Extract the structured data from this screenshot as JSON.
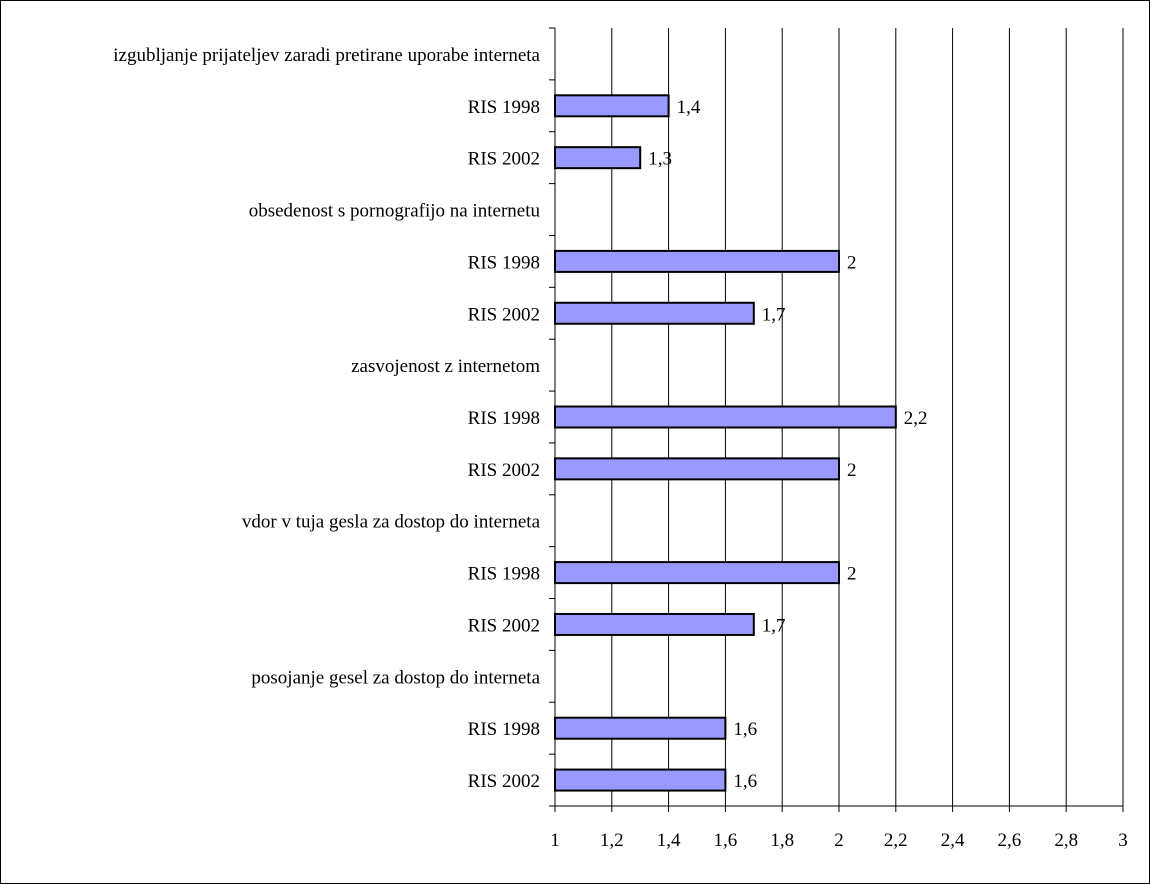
{
  "chart_data": {
    "type": "bar",
    "orientation": "horizontal",
    "rows": [
      {
        "label": "izgubljanje prijateljev zaradi pretirane uporabe interneta",
        "value": null,
        "value_label": ""
      },
      {
        "label": "RIS 1998",
        "value": 1.4,
        "value_label": "1,4"
      },
      {
        "label": "RIS 2002",
        "value": 1.3,
        "value_label": "1,3"
      },
      {
        "label": "obsedenost s pornografijo na internetu",
        "value": null,
        "value_label": ""
      },
      {
        "label": "RIS 1998",
        "value": 2.0,
        "value_label": "2"
      },
      {
        "label": "RIS 2002",
        "value": 1.7,
        "value_label": "1,7"
      },
      {
        "label": "zasvojenost z internetom",
        "value": null,
        "value_label": ""
      },
      {
        "label": "RIS 1998",
        "value": 2.2,
        "value_label": "2,2"
      },
      {
        "label": "RIS 2002",
        "value": 2.0,
        "value_label": "2"
      },
      {
        "label": "vdor v tuja gesla za dostop do interneta",
        "value": null,
        "value_label": ""
      },
      {
        "label": "RIS 1998",
        "value": 2.0,
        "value_label": "2"
      },
      {
        "label": "RIS 2002",
        "value": 1.7,
        "value_label": "1,7"
      },
      {
        "label": "posojanje gesel za dostop do interneta",
        "value": null,
        "value_label": ""
      },
      {
        "label": "RIS 1998",
        "value": 1.6,
        "value_label": "1,6"
      },
      {
        "label": "RIS 2002",
        "value": 1.6,
        "value_label": "1,6"
      }
    ],
    "xlim": [
      1,
      3
    ],
    "x_ticks": [
      1,
      1.2,
      1.4,
      1.6,
      1.8,
      2,
      2.2,
      2.4,
      2.6,
      2.8,
      3
    ],
    "x_tick_labels": [
      "1",
      "1,2",
      "1,4",
      "1,6",
      "1,8",
      "2",
      "2,2",
      "2,4",
      "2,6",
      "2,8",
      "3"
    ],
    "grid": "vertical",
    "bar_color": "#9999ff",
    "bar_edge_color": "#000000"
  }
}
